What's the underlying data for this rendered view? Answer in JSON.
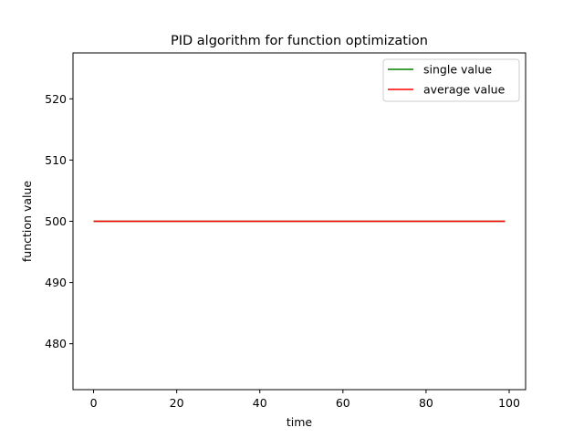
{
  "chart_data": {
    "type": "line",
    "title": "PID algorithm for function optimization",
    "xlabel": "time",
    "ylabel": "function value",
    "xlim": [
      -4.95,
      103.95
    ],
    "ylim": [
      472.5,
      527.5
    ],
    "xticks": [
      0,
      20,
      40,
      60,
      80,
      100
    ],
    "yticks": [
      480,
      490,
      500,
      510,
      520
    ],
    "grid": false,
    "legend_position": "upper right",
    "series": [
      {
        "name": "single value",
        "color": "#008000",
        "x_start": 0,
        "x_end": 99,
        "value": 500
      },
      {
        "name": "average value",
        "color": "#ff0000",
        "x_start": 0,
        "x_end": 99,
        "value": 500
      }
    ]
  }
}
